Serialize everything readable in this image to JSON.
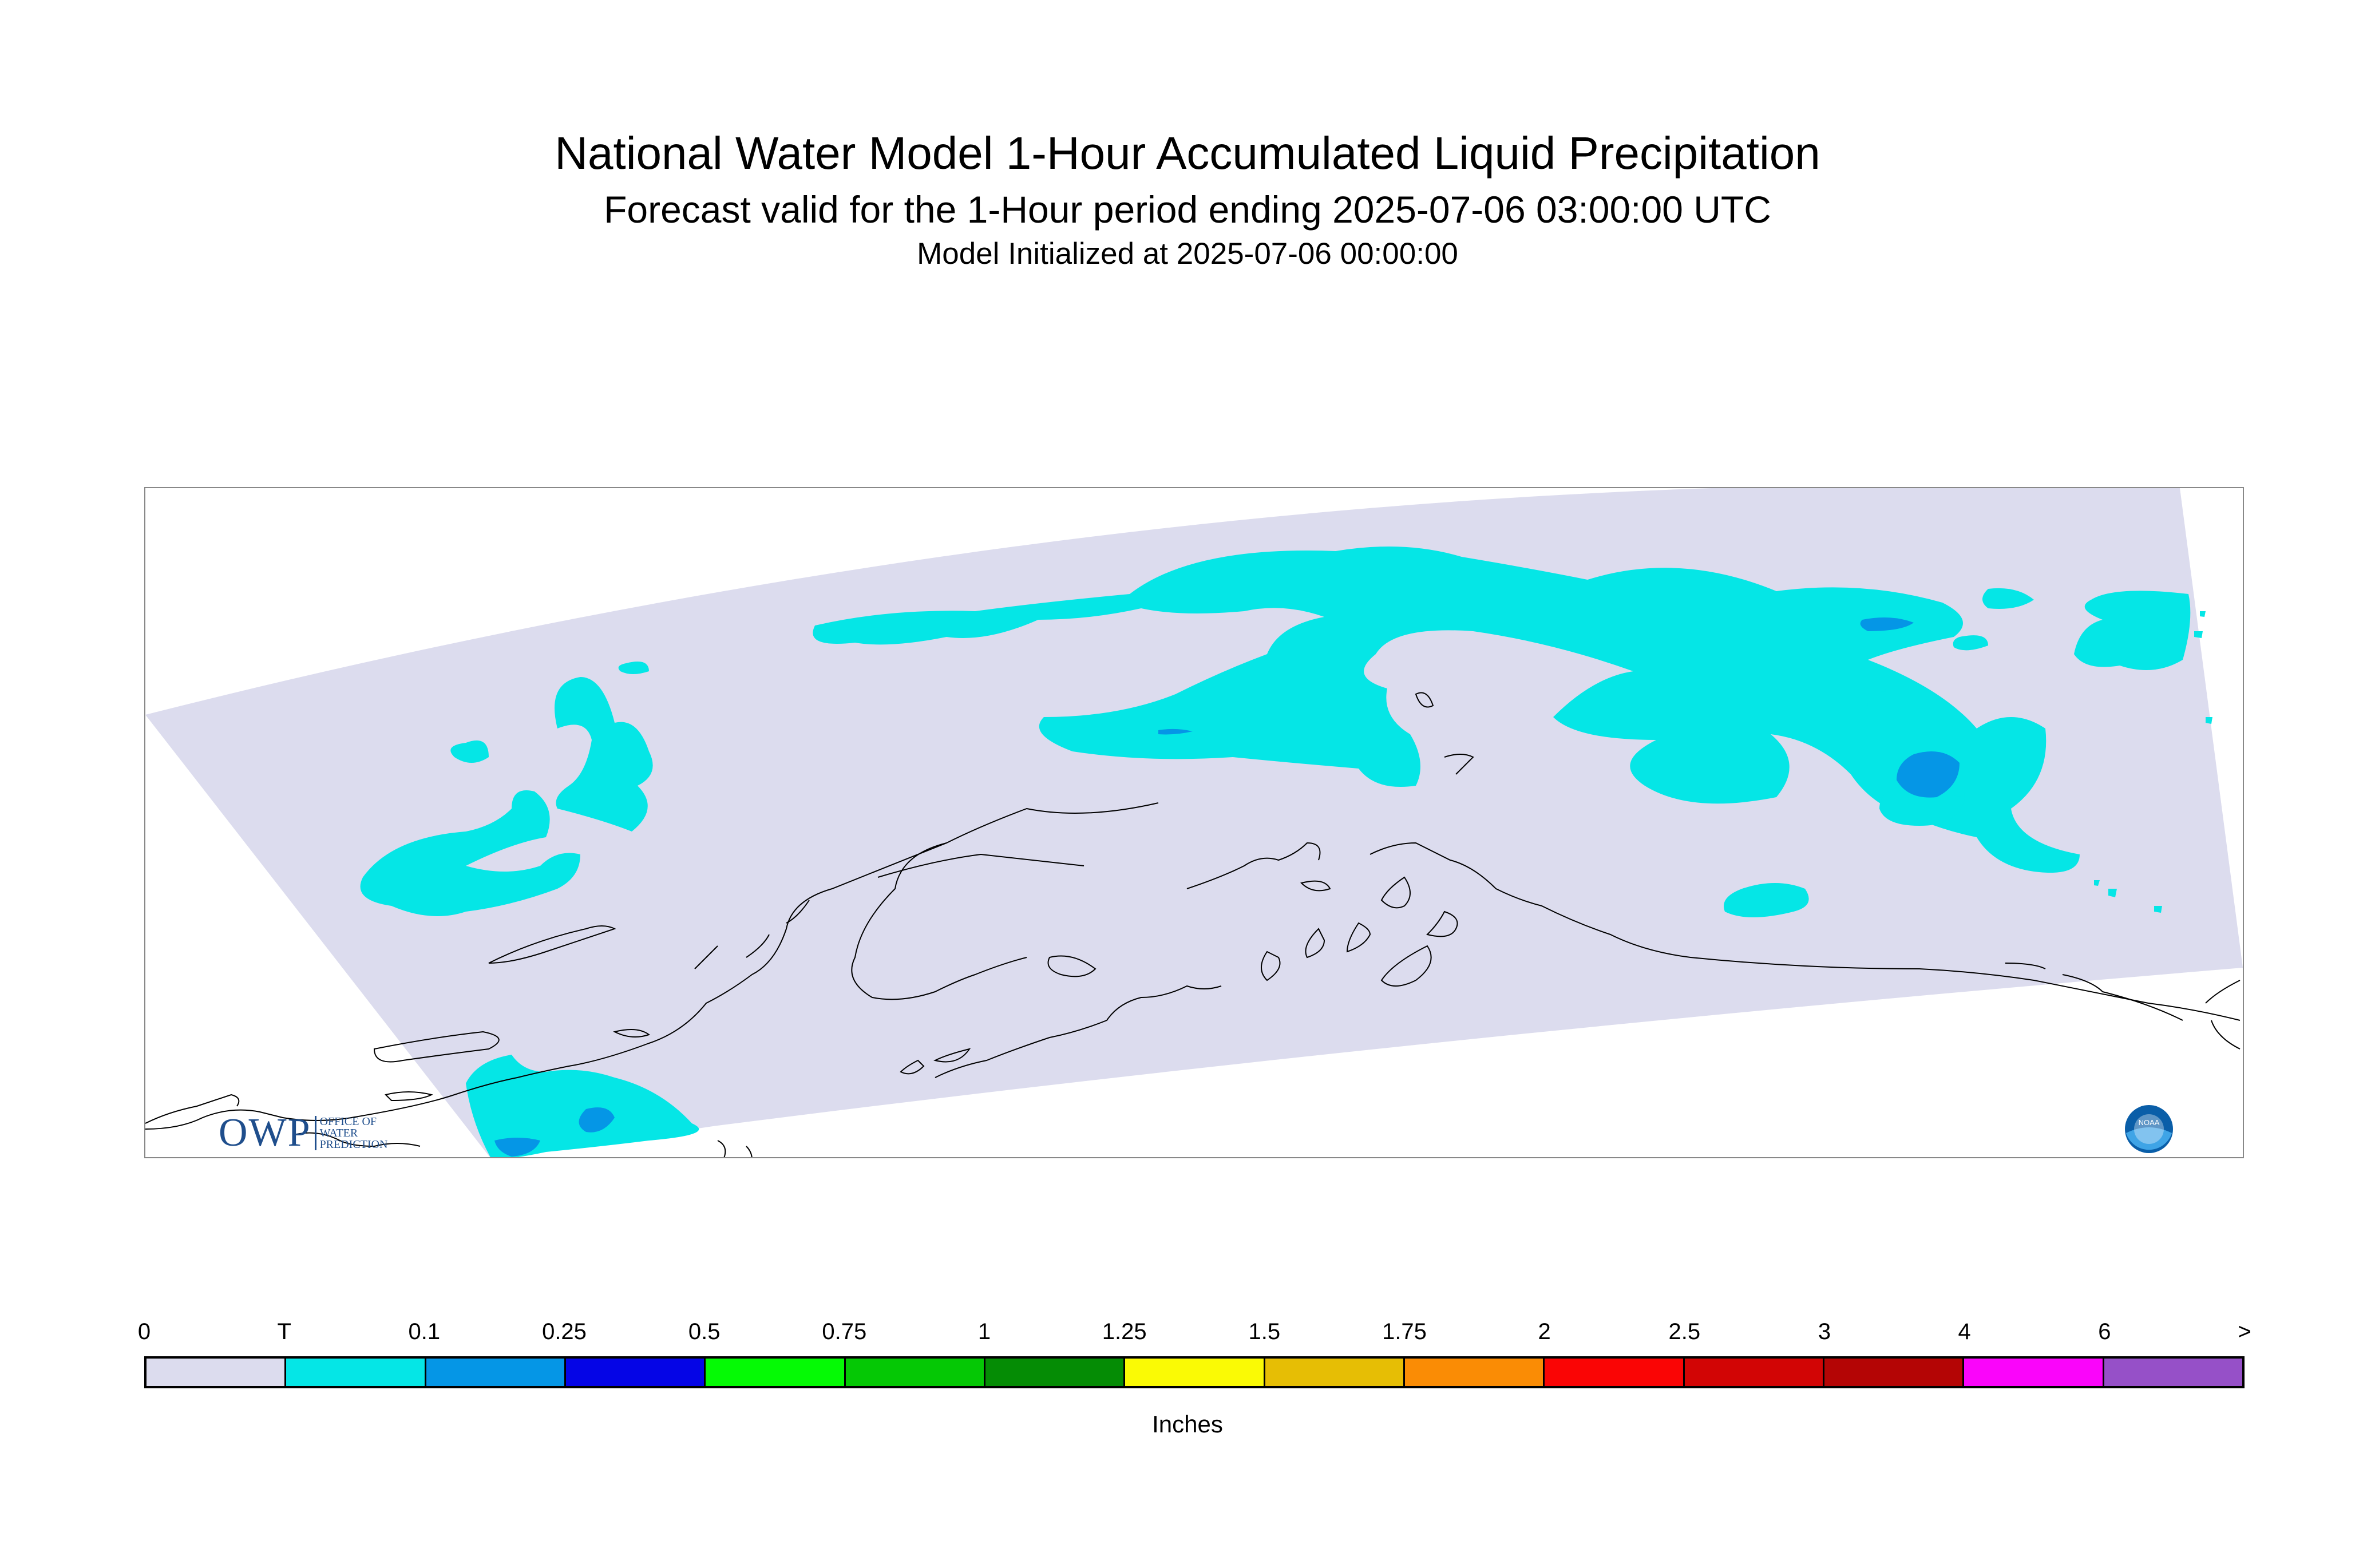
{
  "header": {
    "title": "National Water Model 1-Hour Accumulated Liquid Precipitation",
    "subtitle": "Forecast valid for the 1-Hour period ending 2025-07-06 03:00:00 UTC",
    "initialized": "Model Initialized at 2025-07-06 00:00:00"
  },
  "logos": {
    "owp_mark": "OWP",
    "owp_text": [
      "OFFICE OF",
      "WATER",
      "PREDICTION"
    ],
    "noaa_text": "NOAA"
  },
  "colors": {
    "domain_fill": "#dcdcee",
    "trace": "#05e6e6",
    "light": "#0596e6",
    "coast": "#000000"
  },
  "legend": {
    "tick_labels": [
      "0",
      "T",
      "0.1",
      "0.25",
      "0.5",
      "0.75",
      "1",
      "1.25",
      "1.5",
      "1.75",
      "2",
      "2.5",
      "3",
      "4",
      "6",
      ">"
    ],
    "colors": [
      "#dcdcee",
      "#05e6e6",
      "#0596e6",
      "#0505e6",
      "#05fa05",
      "#05c805",
      "#058c05",
      "#fafa05",
      "#e6be05",
      "#fa8c05",
      "#fa0505",
      "#d20505",
      "#b40505",
      "#fa05fa",
      "#9650c8"
    ],
    "units": "Inches"
  }
}
